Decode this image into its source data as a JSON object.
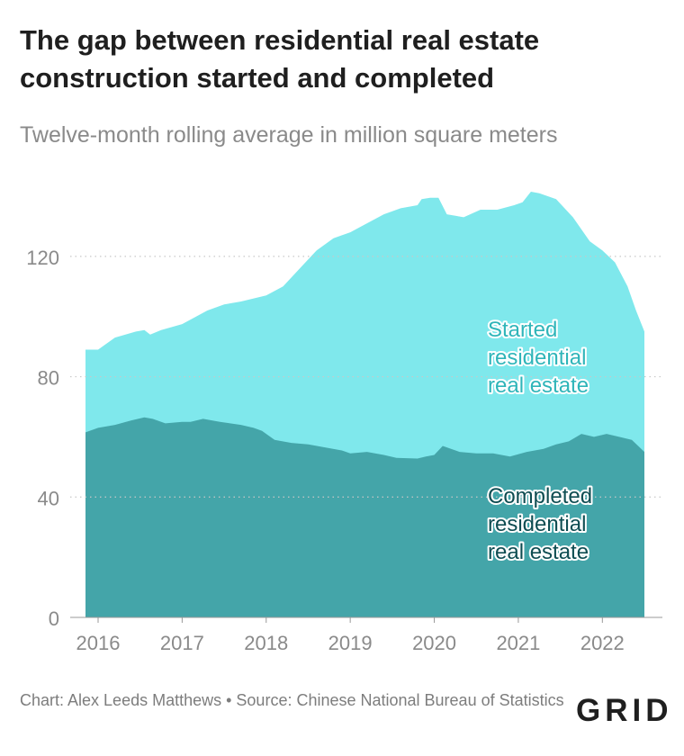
{
  "title": "The gap between residential real estate construction started and completed",
  "subtitle": "Twelve-month rolling average in million square meters",
  "footer": {
    "credit": "Chart: Alex Leeds Matthews • Source: Chinese National Bureau of Statistics",
    "logo": "GRID"
  },
  "colors": {
    "started": "#7fe8ec",
    "completed": "#44a5a9",
    "started_label": "#2fb5b9",
    "completed_label": "#0e4d52",
    "grid": "#c8c8c8"
  },
  "chart_data": {
    "type": "area",
    "title": "The gap between residential real estate construction started and completed",
    "subtitle": "Twelve-month rolling average in million square meters",
    "xlabel": "",
    "ylabel": "",
    "xlim": [
      2015.85,
      2022.5
    ],
    "ylim": [
      0,
      140
    ],
    "grid": true,
    "x_ticks": [
      2016,
      2017,
      2018,
      2019,
      2020,
      2021,
      2022
    ],
    "y_ticks": [
      0,
      40,
      80,
      120
    ],
    "series": [
      {
        "name": "Started residential real estate",
        "label_lines": [
          "Started",
          "residential",
          "real estate"
        ],
        "x": [
          2015.85,
          2016.0,
          2016.2,
          2016.45,
          2016.55,
          2016.62,
          2016.75,
          2017.0,
          2017.3,
          2017.5,
          2017.7,
          2018.0,
          2018.2,
          2018.4,
          2018.6,
          2018.8,
          2019.0,
          2019.2,
          2019.4,
          2019.6,
          2019.8,
          2019.85,
          2019.95,
          2020.05,
          2020.15,
          2020.35,
          2020.55,
          2020.75,
          2020.95,
          2021.05,
          2021.15,
          2021.25,
          2021.45,
          2021.65,
          2021.85,
          2022.0,
          2022.15,
          2022.3,
          2022.4,
          2022.5
        ],
        "values": [
          89,
          89,
          93,
          95,
          95.5,
          94,
          95.5,
          97.5,
          102,
          104,
          105,
          107,
          110,
          116,
          122,
          126,
          128,
          131,
          134,
          136,
          137,
          139,
          139.5,
          139.5,
          134,
          133,
          135.5,
          135.5,
          137,
          138,
          141.5,
          141,
          139,
          133,
          125,
          122,
          118,
          110,
          102,
          95
        ]
      },
      {
        "name": "Completed residential real estate",
        "label_lines": [
          "Completed",
          "residential",
          "real estate"
        ],
        "x": [
          2015.85,
          2016.0,
          2016.2,
          2016.4,
          2016.55,
          2016.65,
          2016.8,
          2017.0,
          2017.1,
          2017.25,
          2017.45,
          2017.7,
          2017.85,
          2017.95,
          2018.1,
          2018.3,
          2018.5,
          2018.7,
          2018.9,
          2019.0,
          2019.2,
          2019.4,
          2019.55,
          2019.8,
          2019.9,
          2020.0,
          2020.1,
          2020.3,
          2020.5,
          2020.7,
          2020.9,
          2021.1,
          2021.3,
          2021.45,
          2021.6,
          2021.75,
          2021.9,
          2022.05,
          2022.2,
          2022.35,
          2022.5
        ],
        "values": [
          61.5,
          63,
          64,
          65.5,
          66.5,
          66,
          64.5,
          65,
          65,
          66,
          65,
          64,
          63,
          62,
          59,
          58,
          57.5,
          56.5,
          55.5,
          54.5,
          55,
          54,
          53,
          52.8,
          53.5,
          54,
          57,
          55,
          54.5,
          54.5,
          53.5,
          55,
          56,
          57.5,
          58.5,
          61,
          60,
          61,
          60,
          59,
          55
        ]
      }
    ]
  }
}
